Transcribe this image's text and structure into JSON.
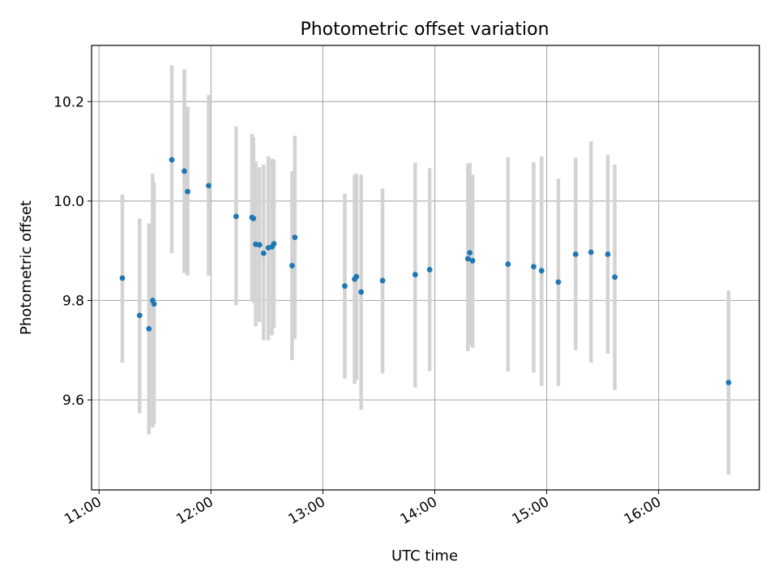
{
  "chart_data": {
    "type": "scatter",
    "title": "Photometric offset variation",
    "xlabel": "UTC time",
    "ylabel": "Photometric offset",
    "xlim": [
      "10:56",
      "16:54"
    ],
    "ylim": [
      9.419,
      10.313
    ],
    "x_ticks": [
      "11:00",
      "12:00",
      "13:00",
      "14:00",
      "15:00",
      "16:00"
    ],
    "y_ticks": [
      9.6,
      9.8,
      10.0,
      10.2
    ],
    "y_tick_labels": [
      "9.6",
      "9.8",
      "10.0",
      "10.2"
    ],
    "grid": true,
    "colors": {
      "point": "#1f77b4",
      "errorbar": "#d3d3d3",
      "grid": "#b0b0b0"
    },
    "points": [
      {
        "x": "11:12:30",
        "y": 9.845,
        "ylow": 9.675,
        "yhigh": 10.013
      },
      {
        "x": "11:21:45",
        "y": 9.77,
        "ylow": 9.573,
        "yhigh": 9.965
      },
      {
        "x": "11:26:45",
        "y": 9.743,
        "ylow": 9.531,
        "yhigh": 9.955
      },
      {
        "x": "11:28:45",
        "y": 9.8,
        "ylow": 9.545,
        "yhigh": 10.055
      },
      {
        "x": "11:29:30",
        "y": 9.793,
        "ylow": 9.552,
        "yhigh": 10.037
      },
      {
        "x": "11:39:00",
        "y": 10.083,
        "ylow": 9.895,
        "yhigh": 10.273
      },
      {
        "x": "11:45:45",
        "y": 10.06,
        "ylow": 9.855,
        "yhigh": 10.265
      },
      {
        "x": "11:47:30",
        "y": 10.019,
        "ylow": 9.85,
        "yhigh": 10.19
      },
      {
        "x": "11:58:45",
        "y": 10.031,
        "ylow": 9.85,
        "yhigh": 10.213
      },
      {
        "x": "12:13:30",
        "y": 9.969,
        "ylow": 9.79,
        "yhigh": 10.15
      },
      {
        "x": "12:22:00",
        "y": 9.967,
        "ylow": 9.8,
        "yhigh": 10.135
      },
      {
        "x": "12:22:45",
        "y": 9.965,
        "ylow": 9.795,
        "yhigh": 10.128
      },
      {
        "x": "12:24:00",
        "y": 9.913,
        "ylow": 9.748,
        "yhigh": 10.08
      },
      {
        "x": "12:26:00",
        "y": 9.912,
        "ylow": 9.757,
        "yhigh": 10.068
      },
      {
        "x": "12:28:15",
        "y": 9.895,
        "ylow": 9.72,
        "yhigh": 10.073
      },
      {
        "x": "12:30:45",
        "y": 9.906,
        "ylow": 9.72,
        "yhigh": 10.09
      },
      {
        "x": "12:32:45",
        "y": 9.908,
        "ylow": 9.73,
        "yhigh": 10.085
      },
      {
        "x": "12:33:45",
        "y": 9.914,
        "ylow": 9.745,
        "yhigh": 10.083
      },
      {
        "x": "12:43:30",
        "y": 9.87,
        "ylow": 9.68,
        "yhigh": 10.06
      },
      {
        "x": "12:45:00",
        "y": 9.927,
        "ylow": 9.723,
        "yhigh": 10.131
      },
      {
        "x": "13:11:45",
        "y": 9.829,
        "ylow": 9.643,
        "yhigh": 10.015
      },
      {
        "x": "13:17:00",
        "y": 9.843,
        "ylow": 9.632,
        "yhigh": 10.053
      },
      {
        "x": "13:18:00",
        "y": 9.848,
        "ylow": 9.64,
        "yhigh": 10.055
      },
      {
        "x": "13:20:30",
        "y": 9.817,
        "ylow": 9.58,
        "yhigh": 10.053
      },
      {
        "x": "13:32:00",
        "y": 9.84,
        "ylow": 9.653,
        "yhigh": 10.025
      },
      {
        "x": "13:49:30",
        "y": 9.852,
        "ylow": 9.625,
        "yhigh": 10.077
      },
      {
        "x": "13:57:15",
        "y": 9.862,
        "ylow": 9.658,
        "yhigh": 10.066
      },
      {
        "x": "14:17:45",
        "y": 9.884,
        "ylow": 9.698,
        "yhigh": 10.075
      },
      {
        "x": "14:18:45",
        "y": 9.896,
        "ylow": 9.71,
        "yhigh": 10.077
      },
      {
        "x": "14:20:15",
        "y": 9.88,
        "ylow": 9.705,
        "yhigh": 10.053
      },
      {
        "x": "14:39:15",
        "y": 9.873,
        "ylow": 9.657,
        "yhigh": 10.088
      },
      {
        "x": "14:53:00",
        "y": 9.868,
        "ylow": 9.655,
        "yhigh": 10.078
      },
      {
        "x": "14:57:15",
        "y": 9.86,
        "ylow": 9.628,
        "yhigh": 10.09
      },
      {
        "x": "15:06:15",
        "y": 9.837,
        "ylow": 9.628,
        "yhigh": 10.045
      },
      {
        "x": "15:15:30",
        "y": 9.893,
        "ylow": 9.7,
        "yhigh": 10.087
      },
      {
        "x": "15:23:45",
        "y": 9.897,
        "ylow": 9.675,
        "yhigh": 10.12
      },
      {
        "x": "15:32:45",
        "y": 9.893,
        "ylow": 9.693,
        "yhigh": 10.093
      },
      {
        "x": "15:36:30",
        "y": 9.847,
        "ylow": 9.62,
        "yhigh": 10.073
      },
      {
        "x": "16:37:30",
        "y": 9.635,
        "ylow": 9.45,
        "yhigh": 9.82
      }
    ]
  }
}
